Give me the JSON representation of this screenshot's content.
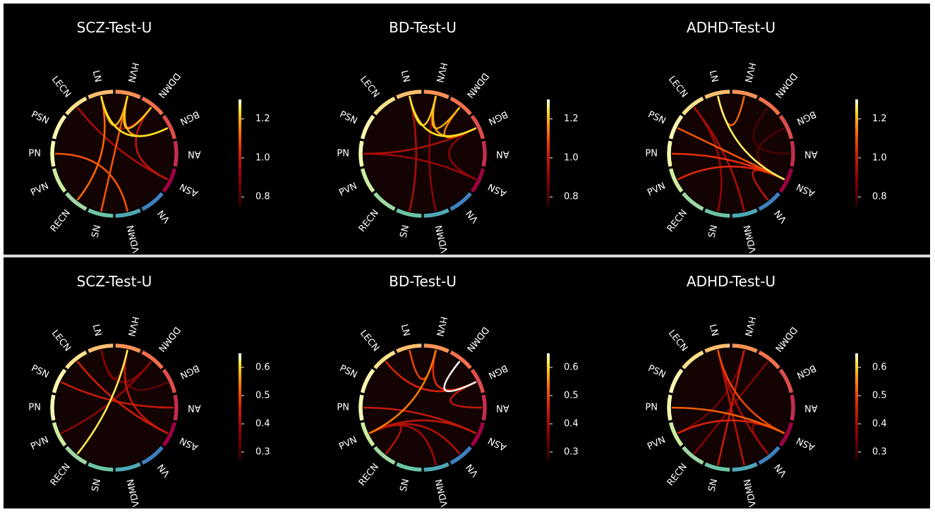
{
  "figure": {
    "rows": [
      {
        "colorbar": {
          "ticks": [
            "1.2",
            "1.0",
            "0.8"
          ],
          "tick_values": [
            1.2,
            1.0,
            0.8
          ],
          "vmin": 0.75,
          "vmax": 1.3
        },
        "panels": [
          {
            "title": "SCZ-Test-U",
            "links": [
              {
                "a": "LN",
                "b": "BGN",
                "v": 1.24
              },
              {
                "a": "HVN",
                "b": "DDMN",
                "v": 1.22
              },
              {
                "a": "LN",
                "b": "HVN",
                "v": 1.2
              },
              {
                "a": "HVN",
                "b": "BGN",
                "v": 1.18
              },
              {
                "a": "LN",
                "b": "RECN",
                "v": 1.12
              },
              {
                "a": "HVN",
                "b": "SN",
                "v": 1.1
              },
              {
                "a": "PN",
                "b": "VDMN",
                "v": 1.1
              },
              {
                "a": "DDMN",
                "b": "ASN",
                "v": 0.98
              },
              {
                "a": "LECN",
                "b": "ASN",
                "v": 0.95
              },
              {
                "a": "LN",
                "b": "DDMN",
                "v": 0.92
              }
            ]
          },
          {
            "title": "BD-Test-U",
            "links": [
              {
                "a": "LN",
                "b": "BGN",
                "v": 1.24
              },
              {
                "a": "LN",
                "b": "HVN",
                "v": 1.22
              },
              {
                "a": "HVN",
                "b": "DDMN",
                "v": 1.2
              },
              {
                "a": "HVN",
                "b": "BGN",
                "v": 1.18
              },
              {
                "a": "DDMN",
                "b": "BGN",
                "v": 1.16
              },
              {
                "a": "LN",
                "b": "SN",
                "v": 0.95
              },
              {
                "a": "BGN",
                "b": "PN",
                "v": 0.95
              },
              {
                "a": "PN",
                "b": "ASN",
                "v": 0.92
              },
              {
                "a": "BGN",
                "b": "ASN",
                "v": 0.9
              },
              {
                "a": "HVN",
                "b": "VDMN",
                "v": 0.9
              }
            ]
          },
          {
            "title": "ADHD-Test-U",
            "links": [
              {
                "a": "LN",
                "b": "ASN",
                "v": 1.26
              },
              {
                "a": "LN",
                "b": "HVN",
                "v": 1.12
              },
              {
                "a": "PSN",
                "b": "ASN",
                "v": 1.1
              },
              {
                "a": "PN",
                "b": "ASN",
                "v": 1.06
              },
              {
                "a": "PVN",
                "b": "ASN",
                "v": 1.04
              },
              {
                "a": "LECN",
                "b": "VDMN",
                "v": 0.95
              },
              {
                "a": "LECN",
                "b": "SN",
                "v": 0.92
              },
              {
                "a": "ASN",
                "b": "VN",
                "v": 0.98
              },
              {
                "a": "BGN",
                "b": "ASN",
                "v": 0.82
              },
              {
                "a": "DDMN",
                "b": "AN",
                "v": 0.8
              }
            ]
          }
        ]
      },
      {
        "colorbar": {
          "ticks": [
            "0.6",
            "0.5",
            "0.4",
            "0.3"
          ],
          "tick_values": [
            0.6,
            0.5,
            0.4,
            0.3
          ],
          "vmin": 0.27,
          "vmax": 0.65
        },
        "panels": [
          {
            "title": "SCZ-Test-U",
            "links": [
              {
                "a": "HVN",
                "b": "RECN",
                "v": 0.62
              },
              {
                "a": "LECN",
                "b": "ASN",
                "v": 0.45
              },
              {
                "a": "PSN",
                "b": "AN",
                "v": 0.44
              },
              {
                "a": "HVN",
                "b": "ASN",
                "v": 0.43
              },
              {
                "a": "DDMN",
                "b": "PVN",
                "v": 0.38
              },
              {
                "a": "LN",
                "b": "DDMN",
                "v": 0.36
              },
              {
                "a": "LN",
                "b": "HVN",
                "v": 0.34
              },
              {
                "a": "HVN",
                "b": "BGN",
                "v": 0.33
              }
            ]
          },
          {
            "title": "BD-Test-U",
            "links": [
              {
                "a": "DDMN",
                "b": "BGN",
                "v": 0.65
              },
              {
                "a": "HVN",
                "b": "PVN",
                "v": 0.54
              },
              {
                "a": "LN",
                "b": "HVN",
                "v": 0.5
              },
              {
                "a": "HVN",
                "b": "BGN",
                "v": 0.48
              },
              {
                "a": "LECN",
                "b": "BGN",
                "v": 0.46
              },
              {
                "a": "BGN",
                "b": "AN",
                "v": 0.44
              },
              {
                "a": "PN",
                "b": "ASN",
                "v": 0.44
              },
              {
                "a": "PVN",
                "b": "ASN",
                "v": 0.43
              },
              {
                "a": "PVN",
                "b": "VN",
                "v": 0.42
              },
              {
                "a": "PVN",
                "b": "RECN",
                "v": 0.42
              },
              {
                "a": "PVN",
                "b": "VDMN",
                "v": 0.4
              }
            ]
          },
          {
            "title": "ADHD-Test-U",
            "links": [
              {
                "a": "PN",
                "b": "ASN",
                "v": 0.52
              },
              {
                "a": "LN",
                "b": "ASN",
                "v": 0.5
              },
              {
                "a": "PVN",
                "b": "ASN",
                "v": 0.46
              },
              {
                "a": "HVN",
                "b": "SN",
                "v": 0.44
              },
              {
                "a": "LN",
                "b": "VDMN",
                "v": 0.42
              },
              {
                "a": "LN",
                "b": "VN",
                "v": 0.4
              },
              {
                "a": "DDMN",
                "b": "RECN",
                "v": 0.36
              },
              {
                "a": "HVN",
                "b": "PVN",
                "v": 0.34
              },
              {
                "a": "ASN",
                "b": "VN",
                "v": 0.36
              }
            ]
          }
        ]
      }
    ],
    "networks": [
      {
        "name": "HVN",
        "color": "#f99156"
      },
      {
        "name": "DDMN",
        "color": "#f2704d"
      },
      {
        "name": "BGN",
        "color": "#de4d4b"
      },
      {
        "name": "AN",
        "color": "#c42d4d"
      },
      {
        "name": "ASN",
        "color": "#9e0142"
      },
      {
        "name": "VN",
        "color": "#3f7fbd"
      },
      {
        "name": "VDMN",
        "color": "#4ea8b4"
      },
      {
        "name": "SN",
        "color": "#6cc4a4"
      },
      {
        "name": "RECN",
        "color": "#9fd7a4"
      },
      {
        "name": "PVN",
        "color": "#cdeb9d"
      },
      {
        "name": "PN",
        "color": "#f3fab0"
      },
      {
        "name": "PSN",
        "color": "#fdf4b0"
      },
      {
        "name": "LECN",
        "color": "#fee08b"
      },
      {
        "name": "LN",
        "color": "#fdbe6f"
      }
    ]
  }
}
